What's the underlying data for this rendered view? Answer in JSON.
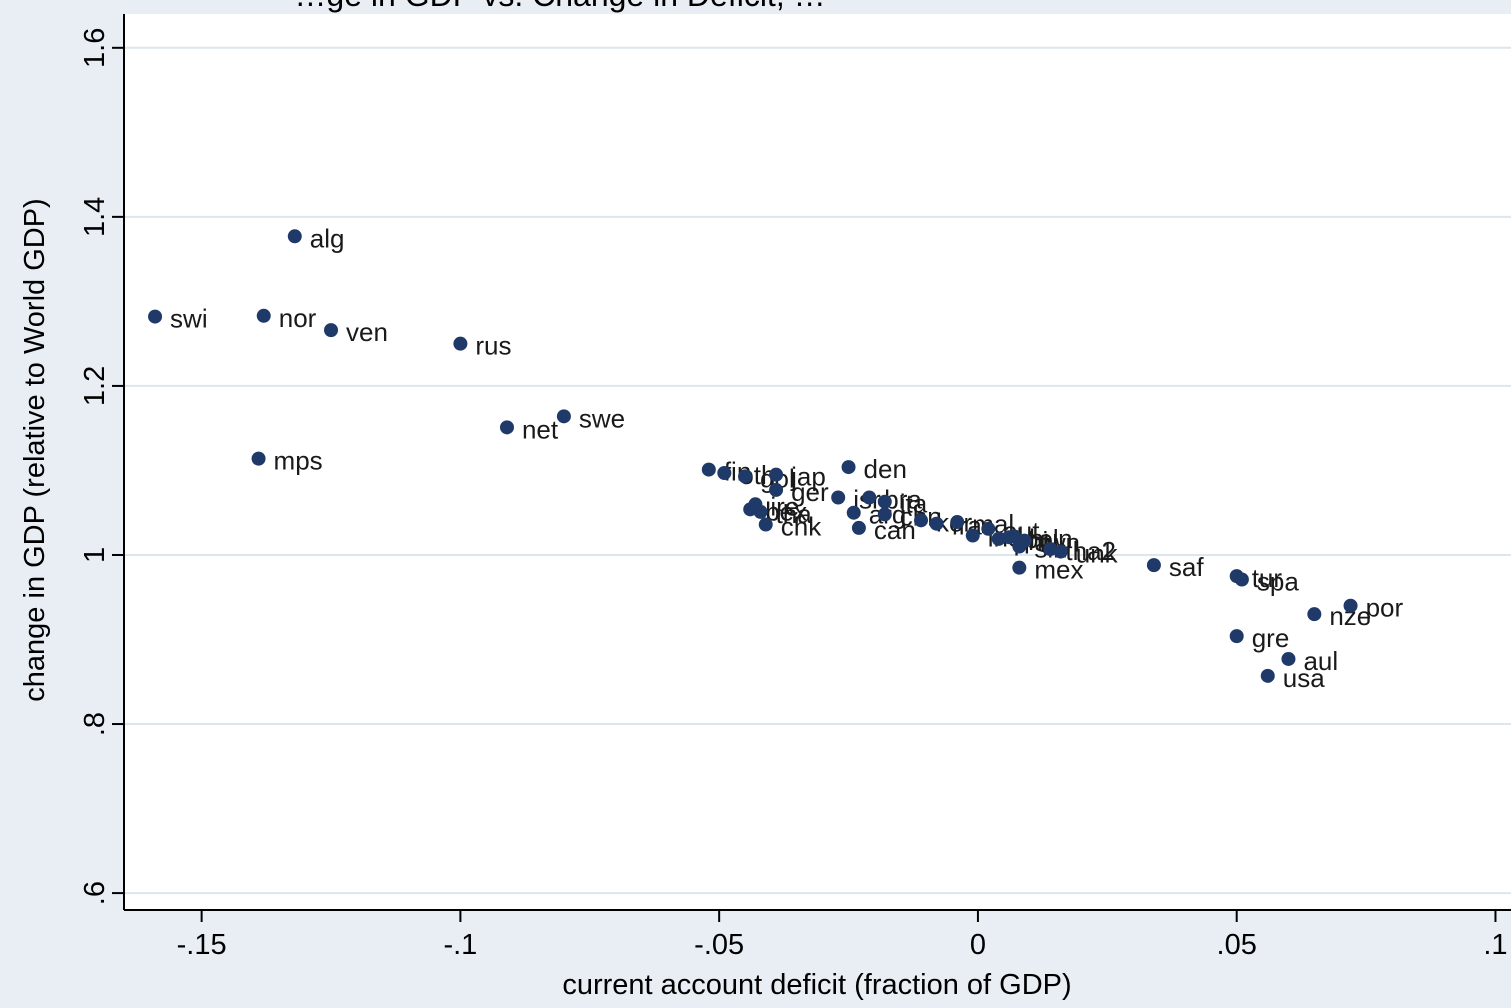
{
  "chart_data": {
    "type": "scatter",
    "title": "…ge in GDP vs. Change in Deficit, …",
    "xlabel": "current account deficit (fraction of GDP)",
    "ylabel": "change in GDP (relative to World GDP)",
    "xlim": [
      -0.165,
      0.103
    ],
    "ylim": [
      0.58,
      1.64
    ],
    "xticks": [
      {
        "value": -0.15,
        "label": "-.15"
      },
      {
        "value": -0.1,
        "label": "-.1"
      },
      {
        "value": -0.05,
        "label": "-.05"
      },
      {
        "value": 0,
        "label": "0"
      },
      {
        "value": 0.05,
        "label": ".05"
      },
      {
        "value": 0.1,
        "label": ".1"
      }
    ],
    "yticks": [
      {
        "value": 0.6,
        "label": ".6"
      },
      {
        "value": 0.8,
        "label": ".8"
      },
      {
        "value": 1.0,
        "label": "1"
      },
      {
        "value": 1.2,
        "label": "1.2"
      },
      {
        "value": 1.4,
        "label": "1.4"
      },
      {
        "value": 1.6,
        "label": "1.6"
      }
    ],
    "grid": true,
    "point_color": "#1f3a68",
    "points": [
      {
        "label": "swi",
        "x": -0.159,
        "y": 1.282
      },
      {
        "label": "alg",
        "x": -0.132,
        "y": 1.377
      },
      {
        "label": "nor",
        "x": -0.138,
        "y": 1.283
      },
      {
        "label": "ven",
        "x": -0.125,
        "y": 1.266
      },
      {
        "label": "rus",
        "x": -0.1,
        "y": 1.25
      },
      {
        "label": "mps",
        "x": -0.139,
        "y": 1.114
      },
      {
        "label": "net",
        "x": -0.091,
        "y": 1.151
      },
      {
        "label": "swe",
        "x": -0.08,
        "y": 1.164
      },
      {
        "label": "fin",
        "x": -0.052,
        "y": 1.101
      },
      {
        "label": "oth",
        "x": -0.049,
        "y": 1.097
      },
      {
        "label": "gol",
        "x": -0.045,
        "y": 1.093
      },
      {
        "label": "jap",
        "x": -0.039,
        "y": 1.095
      },
      {
        "label": "ger",
        "x": -0.039,
        "y": 1.077
      },
      {
        "label": "ire",
        "x": -0.043,
        "y": 1.06
      },
      {
        "label": "bex",
        "x": -0.044,
        "y": 1.054
      },
      {
        "label": "tha",
        "x": -0.042,
        "y": 1.051
      },
      {
        "label": "chk",
        "x": -0.041,
        "y": 1.036
      },
      {
        "label": "den",
        "x": -0.025,
        "y": 1.104
      },
      {
        "label": "isr",
        "x": -0.027,
        "y": 1.068
      },
      {
        "label": "bra",
        "x": -0.021,
        "y": 1.068
      },
      {
        "label": "ita",
        "x": -0.018,
        "y": 1.063
      },
      {
        "label": "arg",
        "x": -0.024,
        "y": 1.05
      },
      {
        "label": "chn",
        "x": -0.018,
        "y": 1.048
      },
      {
        "label": "can",
        "x": -0.023,
        "y": 1.032
      },
      {
        "label": "kor",
        "x": -0.011,
        "y": 1.041
      },
      {
        "label": "fra",
        "x": -0.008,
        "y": 1.037
      },
      {
        "label": "mal",
        "x": -0.004,
        "y": 1.039
      },
      {
        "label": "ind",
        "x": -0.001,
        "y": 1.023
      },
      {
        "label": "aut",
        "x": 0.002,
        "y": 1.031
      },
      {
        "label": "phi",
        "x": 0.004,
        "y": 1.019
      },
      {
        "label": "pol",
        "x": 0.006,
        "y": 1.021
      },
      {
        "label": "hun",
        "x": 0.007,
        "y": 1.022
      },
      {
        "label": "sin",
        "x": 0.008,
        "y": 1.01
      },
      {
        "label": "twn",
        "x": 0.009,
        "y": 1.017
      },
      {
        "label": "tha2",
        "x": 0.014,
        "y": 1.007
      },
      {
        "label": "unk",
        "x": 0.016,
        "y": 1.004
      },
      {
        "label": "mex",
        "x": 0.008,
        "y": 0.985
      },
      {
        "label": "saf",
        "x": 0.034,
        "y": 0.988
      },
      {
        "label": "tur",
        "x": 0.05,
        "y": 0.975
      },
      {
        "label": "spa",
        "x": 0.051,
        "y": 0.971
      },
      {
        "label": "por",
        "x": 0.072,
        "y": 0.94
      },
      {
        "label": "nze",
        "x": 0.065,
        "y": 0.93
      },
      {
        "label": "gre",
        "x": 0.05,
        "y": 0.904
      },
      {
        "label": "aul",
        "x": 0.06,
        "y": 0.877
      },
      {
        "label": "usa",
        "x": 0.056,
        "y": 0.857
      }
    ]
  }
}
